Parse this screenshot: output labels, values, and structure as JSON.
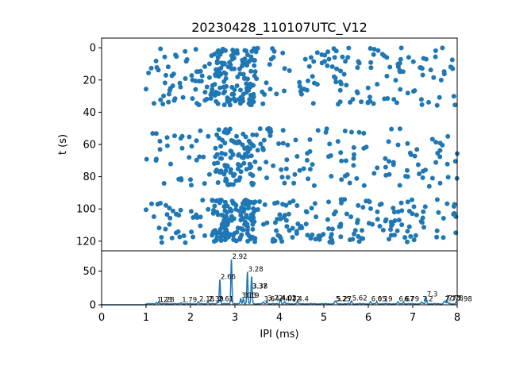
{
  "chart_data": [
    {
      "type": "scatter",
      "title": "20230428_110107UTC_V12",
      "xlabel": "",
      "ylabel": "t (s)",
      "xlim": [
        0,
        8
      ],
      "ylim": [
        126,
        -6
      ],
      "y_inverted": true,
      "yticks": [
        "0",
        "20",
        "40",
        "60",
        "80",
        "100",
        "120"
      ],
      "color": "#1f77b4",
      "bands": [
        {
          "t_start": 0,
          "t_end": 36,
          "ipi_start": 1.0,
          "ipi_end": 8.0
        },
        {
          "t_start": 50,
          "t_end": 86,
          "ipi_start": 1.0,
          "ipi_end": 8.0
        },
        {
          "t_start": 94,
          "t_end": 121,
          "ipi_start": 1.0,
          "ipi_end": 8.0
        }
      ],
      "dense_ipi": [
        2.66,
        2.92,
        3.28
      ]
    },
    {
      "type": "line",
      "xlabel": "IPI (ms)",
      "ylabel": "",
      "xlim": [
        0,
        8
      ],
      "ylim": [
        0,
        80
      ],
      "xticks": [
        "0",
        "1",
        "2",
        "3",
        "4",
        "5",
        "6",
        "7",
        "8"
      ],
      "yticks": [
        "0",
        "50"
      ],
      "color": "#1f77b4",
      "peaks": [
        {
          "x": 1.23,
          "y": 2,
          "label": "1.23"
        },
        {
          "x": 1.28,
          "y": 2,
          "label": "1.28"
        },
        {
          "x": 1.79,
          "y": 2,
          "label": "1.79"
        },
        {
          "x": 2.18,
          "y": 3,
          "label": "2.18"
        },
        {
          "x": 2.39,
          "y": 3,
          "label": "2.39"
        },
        {
          "x": 2.61,
          "y": 3,
          "label": "2.61"
        },
        {
          "x": 2.66,
          "y": 36,
          "label": "2.66"
        },
        {
          "x": 2.92,
          "y": 66,
          "label": "2.92"
        },
        {
          "x": 3.13,
          "y": 8,
          "label": "3.13"
        },
        {
          "x": 3.19,
          "y": 8,
          "label": "3.19"
        },
        {
          "x": 3.28,
          "y": 47,
          "label": "3.28"
        },
        {
          "x": 3.37,
          "y": 22,
          "label": "3.37"
        },
        {
          "x": 3.38,
          "y": 22,
          "label": "3.38"
        },
        {
          "x": 3.64,
          "y": 3,
          "label": "3.64"
        },
        {
          "x": 3.72,
          "y": 4,
          "label": "3.72"
        },
        {
          "x": 4.02,
          "y": 4,
          "label": "4.02"
        },
        {
          "x": 4.03,
          "y": 4,
          "label": "4.03"
        },
        {
          "x": 4.12,
          "y": 3,
          "label": "4.12"
        },
        {
          "x": 4.4,
          "y": 3,
          "label": "4.4"
        },
        {
          "x": 5.25,
          "y": 3,
          "label": "5.25"
        },
        {
          "x": 5.27,
          "y": 3,
          "label": "5.27"
        },
        {
          "x": 5.62,
          "y": 4,
          "label": "5.62"
        },
        {
          "x": 6.05,
          "y": 3,
          "label": "6.05"
        },
        {
          "x": 6.19,
          "y": 3,
          "label": "6.19"
        },
        {
          "x": 6.67,
          "y": 3,
          "label": "6.67"
        },
        {
          "x": 6.79,
          "y": 3,
          "label": "6.79"
        },
        {
          "x": 7.2,
          "y": 3,
          "label": "7.2"
        },
        {
          "x": 7.3,
          "y": 10,
          "label": "7.3"
        },
        {
          "x": 7.7,
          "y": 3,
          "label": "7.7"
        },
        {
          "x": 7.73,
          "y": 4,
          "label": "7.73"
        },
        {
          "x": 7.78,
          "y": 4,
          "label": "7.78"
        },
        {
          "x": 7.98,
          "y": 3,
          "label": "7.98"
        }
      ]
    }
  ]
}
